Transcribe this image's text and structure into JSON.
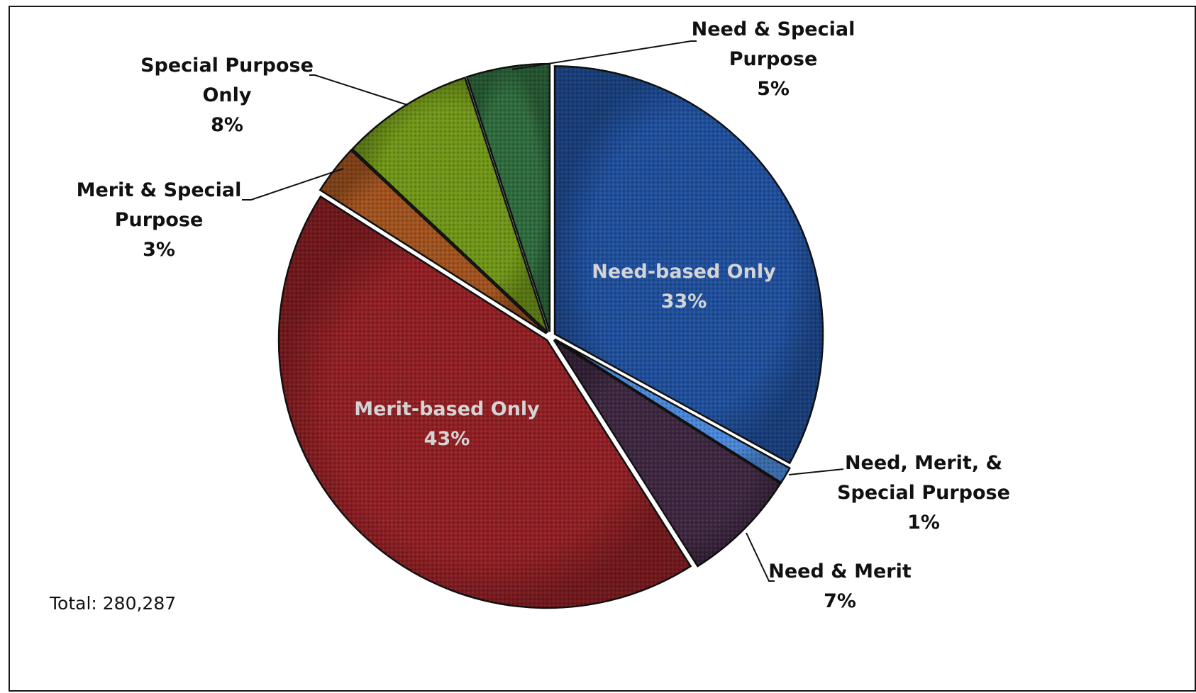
{
  "chart_data": {
    "type": "pie",
    "slices": [
      {
        "label": "Need-based Only",
        "value": 33,
        "pct_label": "33%",
        "color": "#1f4e9a",
        "label_inside": true
      },
      {
        "label": "Need, Merit, & Special Purpose",
        "value": 1,
        "pct_label": "1%",
        "color": "#4a86d8",
        "label_inside": false
      },
      {
        "label": "Need & Merit",
        "value": 7,
        "pct_label": "7%",
        "color": "#3d2740",
        "label_inside": false
      },
      {
        "label": "Merit-based Only",
        "value": 43,
        "pct_label": "43%",
        "color": "#8f1f24",
        "label_inside": true
      },
      {
        "label": "Merit & Special Purpose",
        "value": 3,
        "pct_label": "3%",
        "color": "#a0521e",
        "label_inside": false
      },
      {
        "label": "Special Purpose Only",
        "value": 8,
        "pct_label": "8%",
        "color": "#6f9418",
        "label_inside": false
      },
      {
        "label": "Need & Special Purpose",
        "value": 5,
        "pct_label": "5%",
        "color": "#2e6a3c",
        "label_inside": false
      }
    ],
    "label_lines": {
      "need_based": [
        "Need-based Only",
        "33%"
      ],
      "nmsp": [
        "Need, Merit, &",
        "Special Purpose",
        "1%"
      ],
      "need_merit": [
        "Need & Merit",
        "7%"
      ],
      "merit_based": [
        "Merit-based Only",
        "43%"
      ],
      "merit_sp": [
        "Merit & Special",
        "Purpose",
        "3%"
      ],
      "sp_only": [
        "Special Purpose",
        "Only",
        "8%"
      ],
      "need_sp": [
        "Need & Special",
        "Purpose",
        "5%"
      ]
    },
    "annotation": "Total: 280,287",
    "legend": "none"
  }
}
